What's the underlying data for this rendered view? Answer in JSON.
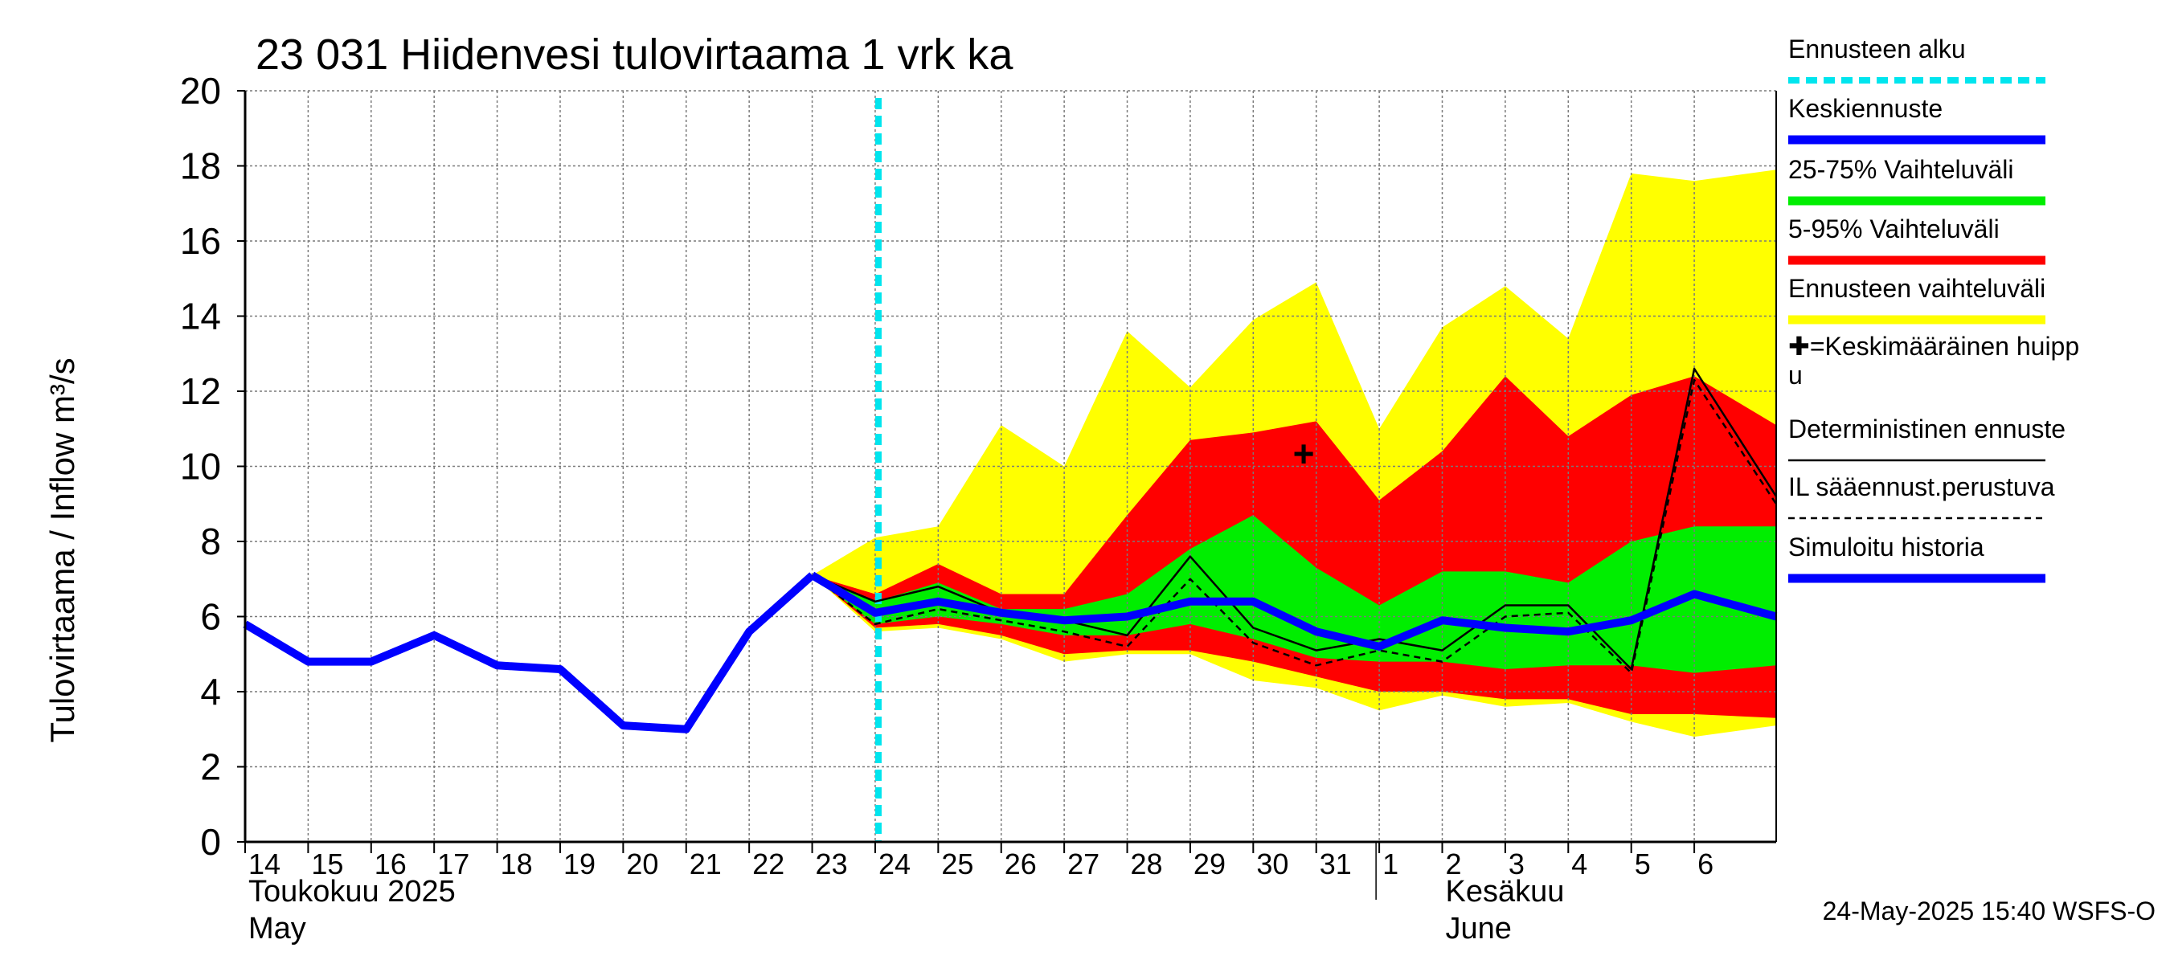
{
  "chart_data": {
    "type": "area",
    "title": "23 031 Hiidenvesi tulovirtaama 1 vrk ka",
    "ylabel": "Tulovirtaama / Inflow    m³/s",
    "ylim": [
      0,
      20
    ],
    "yticks": [
      0,
      2,
      4,
      6,
      8,
      10,
      12,
      14,
      16,
      18,
      20
    ],
    "xlim": [
      0,
      24.3
    ],
    "x_ticks": [
      {
        "x": 0,
        "label": "14"
      },
      {
        "x": 1,
        "label": "15"
      },
      {
        "x": 2,
        "label": "16"
      },
      {
        "x": 3,
        "label": "17"
      },
      {
        "x": 4,
        "label": "18"
      },
      {
        "x": 5,
        "label": "19"
      },
      {
        "x": 6,
        "label": "20"
      },
      {
        "x": 7,
        "label": "21"
      },
      {
        "x": 8,
        "label": "22"
      },
      {
        "x": 9,
        "label": "23"
      },
      {
        "x": 10,
        "label": "24"
      },
      {
        "x": 11,
        "label": "25"
      },
      {
        "x": 12,
        "label": "26"
      },
      {
        "x": 13,
        "label": "27"
      },
      {
        "x": 14,
        "label": "28"
      },
      {
        "x": 15,
        "label": "29"
      },
      {
        "x": 16,
        "label": "30"
      },
      {
        "x": 17,
        "label": "31"
      },
      {
        "x": 18,
        "label": "1"
      },
      {
        "x": 19,
        "label": "2"
      },
      {
        "x": 20,
        "label": "3"
      },
      {
        "x": 21,
        "label": "4"
      },
      {
        "x": 22,
        "label": "5"
      },
      {
        "x": 23,
        "label": "6"
      }
    ],
    "month_labels": [
      {
        "x": 0,
        "line1": "Toukokuu  2025",
        "line2": "May"
      },
      {
        "x": 19,
        "line1": "Kesäkuu",
        "line2": "June"
      }
    ],
    "month_divider_x": 18,
    "forecast_start_x": 10,
    "series": [
      {
        "name": "Ennusteen vaihteluväli",
        "kind": "band",
        "color": "#ffff00",
        "x": [
          9,
          10,
          11,
          12,
          13,
          14,
          15,
          16,
          17,
          18,
          19,
          20,
          21,
          22,
          23,
          24.3
        ],
        "upper": [
          7.1,
          8.1,
          8.4,
          11.1,
          10.0,
          13.6,
          12.1,
          13.9,
          14.9,
          11.0,
          13.7,
          14.8,
          13.4,
          17.8,
          17.6,
          17.9
        ],
        "lower": [
          7.1,
          5.6,
          5.7,
          5.4,
          4.8,
          5.0,
          5.0,
          4.3,
          4.1,
          3.5,
          3.9,
          3.6,
          3.7,
          3.2,
          2.8,
          3.1
        ]
      },
      {
        "name": "5-95% Vaihteluväli",
        "kind": "band",
        "color": "#ff0000",
        "x": [
          9,
          10,
          11,
          12,
          13,
          14,
          15,
          16,
          17,
          18,
          19,
          20,
          21,
          22,
          23,
          24.3
        ],
        "upper": [
          7.1,
          6.6,
          7.4,
          6.6,
          6.6,
          8.7,
          10.7,
          10.9,
          11.2,
          9.1,
          10.4,
          12.4,
          10.8,
          11.9,
          12.4,
          11.1
        ],
        "lower": [
          7.1,
          5.7,
          5.8,
          5.5,
          5.0,
          5.1,
          5.1,
          4.8,
          4.4,
          4.0,
          4.0,
          3.8,
          3.8,
          3.4,
          3.4,
          3.3
        ]
      },
      {
        "name": "25-75% Vaihteluväli",
        "kind": "band",
        "color": "#00ee00",
        "x": [
          9,
          10,
          11,
          12,
          13,
          14,
          15,
          16,
          17,
          18,
          19,
          20,
          21,
          22,
          23,
          24.3
        ],
        "upper": [
          7.1,
          6.4,
          6.9,
          6.2,
          6.2,
          6.6,
          7.8,
          8.7,
          7.3,
          6.3,
          7.2,
          7.2,
          6.9,
          8.0,
          8.4,
          8.4
        ],
        "lower": [
          7.1,
          5.8,
          6.0,
          5.8,
          5.5,
          5.5,
          5.8,
          5.4,
          4.9,
          4.8,
          4.8,
          4.6,
          4.7,
          4.7,
          4.5,
          4.7
        ]
      },
      {
        "name": "Simuloitu historia",
        "kind": "line",
        "color": "#0000ff",
        "x": [
          0,
          1,
          2,
          3,
          4,
          5,
          6,
          7,
          8,
          9
        ],
        "values": [
          5.8,
          4.8,
          4.8,
          5.5,
          4.7,
          4.6,
          3.1,
          3.0,
          5.6,
          7.1
        ]
      },
      {
        "name": "Keskiennuste",
        "kind": "line",
        "color": "#0000ff",
        "x": [
          9,
          10,
          11,
          12,
          13,
          14,
          15,
          16,
          17,
          18,
          19,
          20,
          21,
          22,
          23,
          24.3
        ],
        "values": [
          7.1,
          6.1,
          6.4,
          6.1,
          5.9,
          6.0,
          6.4,
          6.4,
          5.6,
          5.2,
          5.9,
          5.7,
          5.6,
          5.9,
          6.6,
          6.0
        ]
      },
      {
        "name": "Deterministinen ennuste",
        "kind": "line",
        "color": "#000000",
        "x": [
          9,
          10,
          11,
          12,
          13,
          14,
          15,
          16,
          17,
          18,
          19,
          20,
          21,
          22,
          23,
          24.3
        ],
        "values": [
          7.1,
          6.4,
          6.8,
          6.1,
          5.9,
          5.5,
          7.6,
          5.7,
          5.1,
          5.4,
          5.1,
          6.3,
          6.3,
          4.6,
          12.6,
          9.2
        ]
      },
      {
        "name": "IL sääennust.perustuva",
        "kind": "dashed",
        "color": "#000000",
        "x": [
          9,
          10,
          11,
          12,
          13,
          14,
          15,
          16,
          17,
          18,
          19,
          20,
          21,
          22,
          23,
          24.3
        ],
        "values": [
          7.1,
          5.8,
          6.2,
          5.9,
          5.6,
          5.2,
          7.0,
          5.3,
          4.7,
          5.1,
          4.8,
          6.0,
          6.1,
          4.5,
          12.3,
          9.0
        ]
      }
    ],
    "peak_marker": {
      "x": 16.8,
      "y": 10.3,
      "symbol": "+"
    },
    "legend": [
      {
        "label": "Ennusteen alku",
        "style": "dashed",
        "color": "#00e5ee"
      },
      {
        "label": "Keskiennuste",
        "style": "thick",
        "color": "#0000ff"
      },
      {
        "label": "25-75% Vaihteluväli",
        "style": "thick",
        "color": "#00ee00"
      },
      {
        "label": "5-95% Vaihteluväli",
        "style": "thick",
        "color": "#ff0000"
      },
      {
        "label": "Ennusteen vaihteluväli",
        "style": "thick",
        "color": "#ffff00"
      },
      {
        "label": "✚=Keskimääräinen huipp",
        "label2": "u",
        "style": "none",
        "color": "#000000"
      },
      {
        "label": "Deterministinen ennuste",
        "style": "thin",
        "color": "#000000"
      },
      {
        "label": "IL sääennust.perustuva",
        "style": "thin-dashed",
        "color": "#000000"
      },
      {
        "label": "Simuloitu historia",
        "style": "thick",
        "color": "#0000ff"
      }
    ],
    "footer": "24-May-2025 15:40 WSFS-O"
  }
}
